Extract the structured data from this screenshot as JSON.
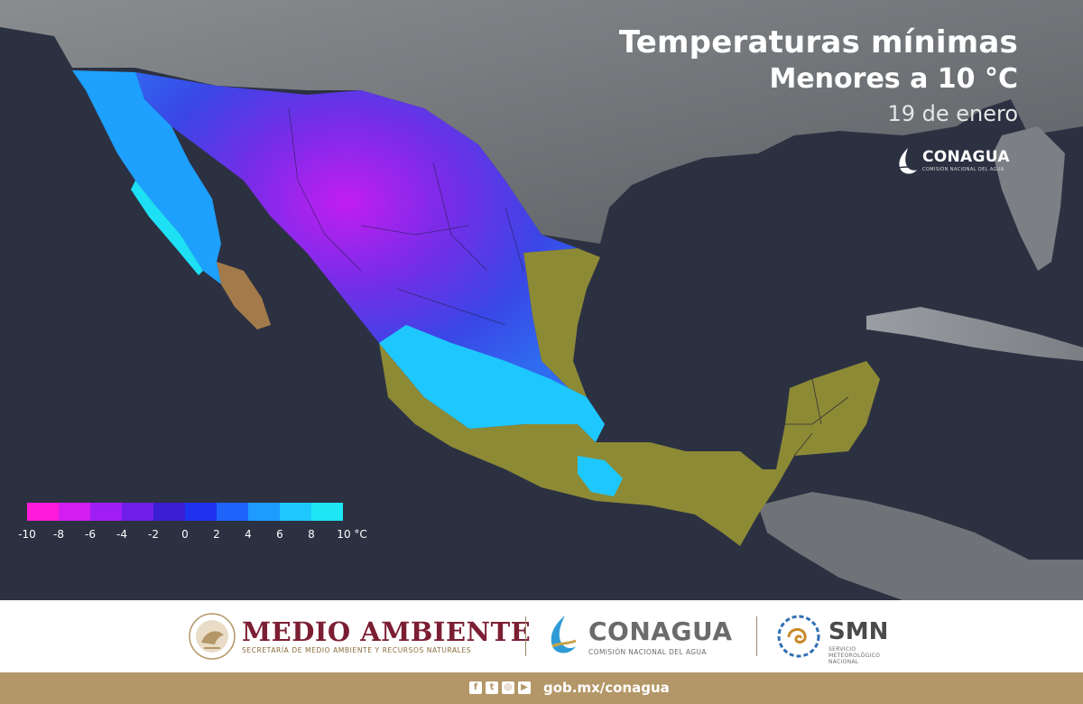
{
  "header": {
    "title_line1": "Temperaturas mínimas",
    "title_line2": "Menores a 10 °C",
    "date": "19 de enero"
  },
  "map_logo": {
    "name": "CONAGUA",
    "subtitle": "COMISIÓN NACIONAL DEL AGUA",
    "icon": "conagua-logo-icon"
  },
  "legend": {
    "unit": "°C",
    "ticks": [
      "-10",
      "-8",
      "-6",
      "-4",
      "-2",
      "0",
      "2",
      "4",
      "6",
      "8",
      "10 °C"
    ],
    "colors": [
      "#ff1ad9",
      "#d21ef0",
      "#a01ef5",
      "#6e1ee6",
      "#3c1ed2",
      "#1e32f0",
      "#1e64fa",
      "#1e9bff",
      "#1ec8ff",
      "#1ee6f5"
    ]
  },
  "footer": {
    "medio_ambiente": {
      "title": "MEDIO AMBIENTE",
      "subtitle": "SECRETARÍA DE MEDIO AMBIENTE Y RECURSOS NATURALES",
      "icon": "mexico-coat-of-arms-icon"
    },
    "conagua": {
      "title": "CONAGUA",
      "subtitle": "COMISIÓN NACIONAL DEL AGUA",
      "icon": "conagua-logo-icon"
    },
    "smn": {
      "title": "SMN",
      "subtitle_line1": "SERVICIO",
      "subtitle_line2": "METEOROLÓGICO",
      "subtitle_line3": "NACIONAL",
      "icon": "smn-logo-icon"
    }
  },
  "bottom_bar": {
    "social_icons": [
      "facebook-icon",
      "twitter-icon",
      "instagram-icon",
      "youtube-icon"
    ],
    "url": "gob.mx/conagua"
  },
  "colors": {
    "ocean": "#2c3142",
    "land": "#6b6f72",
    "warm_land": "#8d8a35",
    "coldest": "#b423e6",
    "cold": "#3c37e6",
    "cool": "#1ec8ff",
    "footer_gold": "#b49768",
    "maroon": "#7b1e33"
  }
}
